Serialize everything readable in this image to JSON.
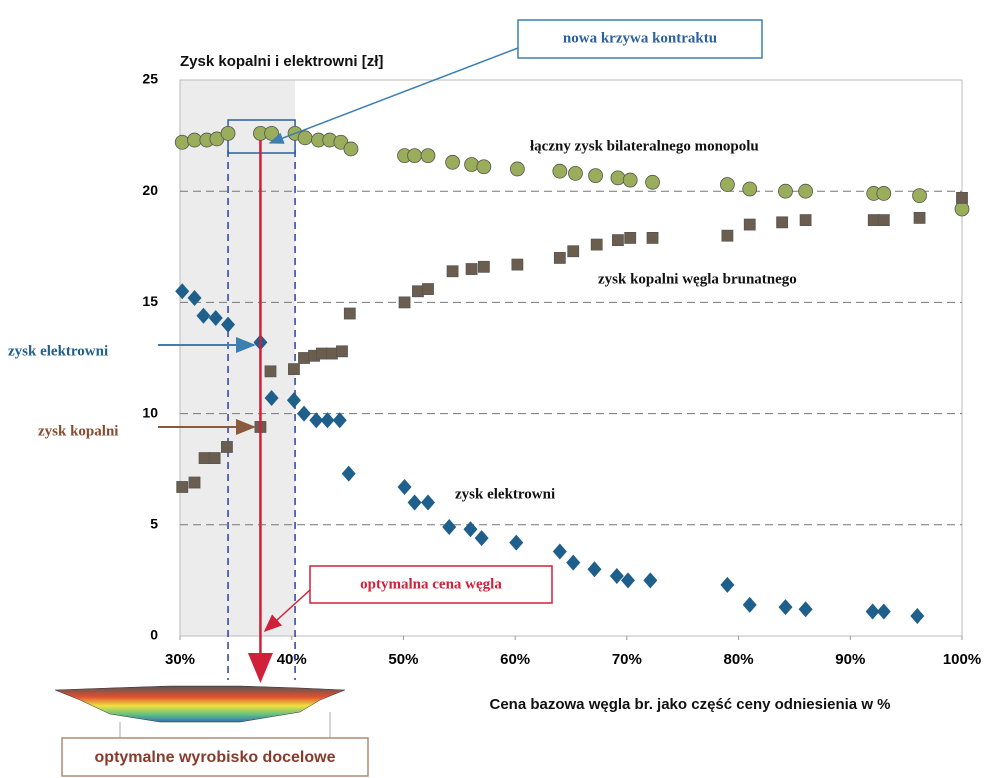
{
  "chart_data": {
    "type": "scatter",
    "y_label": "Zysk kopalni i elektrowni [zł]",
    "x_label": "Cena bazowa węgla br. jako część ceny odniesienia w %",
    "xlim": [
      30,
      100
    ],
    "ylim": [
      0,
      25
    ],
    "xticks": [
      {
        "value": 30,
        "label": "30%"
      },
      {
        "value": 40,
        "label": "40%"
      },
      {
        "value": 50,
        "label": "50%"
      },
      {
        "value": 60,
        "label": "60%"
      },
      {
        "value": 70,
        "label": "70%"
      },
      {
        "value": 80,
        "label": "80%"
      },
      {
        "value": 90,
        "label": "90%"
      },
      {
        "value": 100,
        "label": "100%"
      }
    ],
    "yticks": [
      0,
      5,
      10,
      15,
      20,
      25
    ],
    "grid": true,
    "series": [
      {
        "name": "łączny zysk bilateralnego monopolu",
        "color": "#9aad5a",
        "marker": "circle",
        "x": [
          30.2,
          31.3,
          32.4,
          33.3,
          34.3,
          37.2,
          38.2,
          40.3,
          41.2,
          42.4,
          43.4,
          44.4,
          45.3,
          50.1,
          51,
          52.2,
          54.4,
          56.1,
          57.2,
          60.2,
          64,
          65.4,
          67.2,
          69.2,
          70.3,
          72.3,
          79,
          81,
          84.2,
          86,
          92.1,
          93,
          96.2,
          100
        ],
        "values": [
          22.2,
          22.3,
          22.3,
          22.35,
          22.6,
          22.6,
          22.6,
          22.6,
          22.4,
          22.3,
          22.3,
          22.2,
          21.9,
          21.6,
          21.6,
          21.6,
          21.3,
          21.2,
          21.1,
          21.0,
          20.9,
          20.8,
          20.7,
          20.6,
          20.5,
          20.4,
          20.3,
          20.1,
          20.0,
          20.0,
          19.9,
          19.9,
          19.8,
          19.2
        ]
      },
      {
        "name": "zysk kopalni węgla brunatnego",
        "color": "#6b5e4e",
        "marker": "square",
        "x": [
          30.2,
          31.3,
          32.2,
          33.1,
          34.2,
          37.2,
          38.1,
          40.2,
          41.1,
          42,
          42.7,
          43.6,
          44.5,
          45.2,
          50.1,
          51.3,
          52.2,
          54.4,
          56.1,
          57.2,
          60.2,
          64,
          65.2,
          67.3,
          69.2,
          70.3,
          72.3,
          79,
          81,
          83.9,
          86,
          92.1,
          93,
          96.2,
          100
        ],
        "values": [
          6.7,
          6.9,
          8.0,
          8.0,
          8.5,
          9.4,
          11.9,
          12.0,
          12.5,
          12.6,
          12.7,
          12.7,
          12.8,
          14.5,
          15.0,
          15.5,
          15.6,
          16.4,
          16.5,
          16.6,
          16.7,
          17.0,
          17.3,
          17.6,
          17.8,
          17.9,
          17.9,
          18.0,
          18.5,
          18.6,
          18.7,
          18.7,
          18.7,
          18.8,
          19.7
        ]
      },
      {
        "name": "zysk elektrowni",
        "color": "#1f5f8b",
        "marker": "diamond",
        "x": [
          30.2,
          31.3,
          32.1,
          33.2,
          34.3,
          37.2,
          38.2,
          40.2,
          41.1,
          42.2,
          43.2,
          44.3,
          45.1,
          50.1,
          51,
          52.2,
          54.1,
          56,
          57,
          60.1,
          64,
          65.2,
          67.1,
          69.1,
          70.1,
          72.1,
          79,
          81,
          84.2,
          86,
          92,
          93,
          96
        ],
        "values": [
          15.5,
          15.2,
          14.4,
          14.3,
          14.0,
          13.2,
          10.7,
          10.6,
          10.0,
          9.7,
          9.7,
          9.7,
          7.3,
          6.7,
          6.0,
          6.0,
          4.9,
          4.8,
          4.4,
          4.2,
          3.8,
          3.3,
          3.0,
          2.7,
          2.5,
          2.5,
          2.3,
          1.4,
          1.3,
          1.2,
          1.1,
          1.1,
          0.9
        ]
      }
    ],
    "annotations": {
      "contract": "nowa krzywa kontraktu",
      "plant_pointer": "zysk elektrowni",
      "mine_pointer": "zysk kopalni",
      "optimal_price": "optymalna cena węgla",
      "pit": "optymalne wyrobisko docelowe"
    }
  }
}
